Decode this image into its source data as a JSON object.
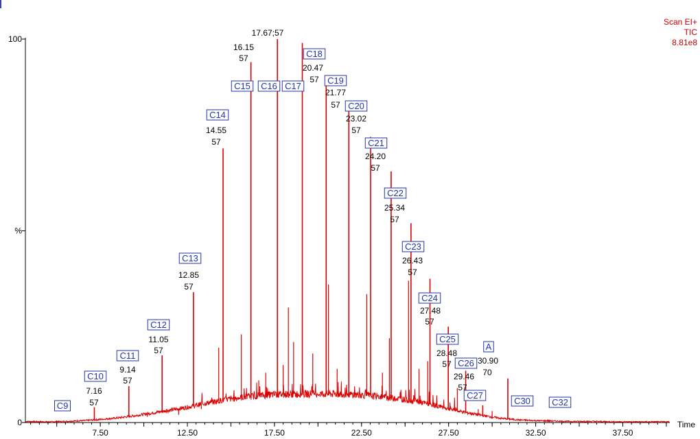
{
  "header": {
    "line1": "Scan EI+",
    "line2": "TIC",
    "line3": "8.81e8"
  },
  "chart_data": {
    "type": "line",
    "title": "",
    "xlabel": "Time",
    "ylabel": "%",
    "xlim": [
      3.2,
      40.2
    ],
    "ylim": [
      0,
      100
    ],
    "x_ticks": [
      "7.50",
      "12.50",
      "17.50",
      "22.50",
      "27.50",
      "32.50",
      "37.50"
    ],
    "y_ticks": [
      "0",
      "%",
      "100"
    ],
    "line_color": "#dd0000",
    "label_color": "#2233aa",
    "series": [
      {
        "values_note": "",
        "x": [
          3.2,
          4.5,
          5.5,
          6.5,
          7.5,
          8.5,
          9.5,
          10.5,
          11.5,
          12.5,
          13.5,
          14.5,
          15.5,
          16.5,
          17.5,
          18.5,
          19.5,
          20.5,
          21.5,
          22.5,
          23.5,
          24.5,
          25.5,
          26.5,
          27.5,
          28.5,
          29.5,
          30.5,
          31.5,
          32.5,
          33.5,
          34.5,
          35.5,
          37.5,
          40.2
        ],
        "y": [
          0.3,
          0.2,
          0.3,
          0.5,
          0.8,
          1.2,
          1.8,
          2.5,
          3.2,
          4.0,
          5.0,
          5.8,
          6.5,
          7.0,
          7.3,
          7.4,
          7.5,
          7.5,
          7.4,
          7.2,
          6.8,
          6.3,
          5.6,
          4.7,
          3.6,
          2.6,
          1.8,
          1.1,
          0.7,
          0.5,
          0.4,
          0.3,
          0.3,
          0.2,
          0.2
        ]
      }
    ],
    "peaks": [
      {
        "label": "C9",
        "time": 5.0,
        "base_peak": "",
        "height": 0.5
      },
      {
        "label": "C10",
        "time": "7.16",
        "base_peak": "57",
        "height": 4.0
      },
      {
        "label": "C11",
        "time": "9.14",
        "base_peak": "57",
        "height": 9.5
      },
      {
        "label": "C12",
        "time": "11.05",
        "base_peak": "57",
        "height": 17.5
      },
      {
        "label": "C13",
        "time": "12.85",
        "base_peak": "57",
        "height": 34.0
      },
      {
        "label": "C14",
        "time": "14.55",
        "base_peak": "57",
        "height": 71.5
      },
      {
        "label": "C15",
        "time": "16.15",
        "base_peak": "57",
        "height": 94.0
      },
      {
        "label": "C16",
        "time": "17.67",
        "base_peak": "57",
        "height": 100
      },
      {
        "label": "C17",
        "time": "19.10",
        "base_peak": "",
        "height": 99.0
      },
      {
        "label": "C18",
        "time": "20.47",
        "base_peak": "57",
        "height": 88.0
      },
      {
        "label": "C19",
        "time": "21.77",
        "base_peak": "57",
        "height": 82.0
      },
      {
        "label": "C20",
        "time": "23.02",
        "base_peak": "57",
        "height": 74.5
      },
      {
        "label": "C21",
        "time": "24.20",
        "base_peak": "57",
        "height": 65.5
      },
      {
        "label": "C22",
        "time": "25.34",
        "base_peak": "57",
        "height": 52.0
      },
      {
        "label": "C23",
        "time": "26.43",
        "base_peak": "57",
        "height": 37.5
      },
      {
        "label": "C24",
        "time": "27.48",
        "base_peak": "57",
        "height": 25.0
      },
      {
        "label": "C25",
        "time": "28.48",
        "base_peak": "57",
        "height": 13.5
      },
      {
        "label": "C26",
        "time": "29.46",
        "base_peak": "57",
        "height": 4.5
      },
      {
        "label": "C27",
        "time": 30.0,
        "base_peak": "",
        "height": 1.0
      },
      {
        "label": "A",
        "time": "30.90",
        "base_peak": "70",
        "height": 11.5
      },
      {
        "label": "C30",
        "time": 33.2,
        "base_peak": "",
        "height": 0.8
      },
      {
        "label": "C32",
        "time": 35.3,
        "base_peak": "",
        "height": 0.5
      }
    ],
    "grid": false,
    "legend": "none"
  }
}
